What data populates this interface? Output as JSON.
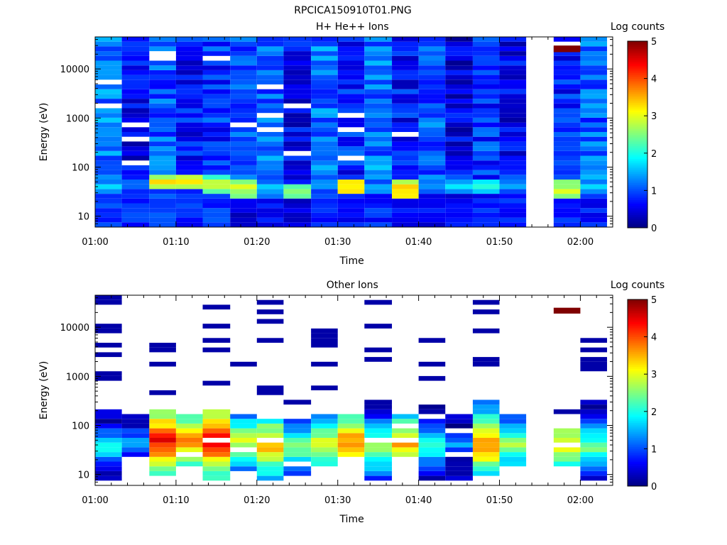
{
  "figure_title": "RPCICA150910T01.PNG",
  "colors": {
    "colormap": [
      "#00007f",
      "#0000ff",
      "#007fff",
      "#00ffff",
      "#7fff7f",
      "#ffff00",
      "#ff7f00",
      "#ff0000",
      "#7f0000"
    ],
    "axis": "#000000",
    "missing": "#ffffff"
  },
  "chart_data": [
    {
      "type": "heatmap",
      "title": "H+ He++ Ions",
      "xlabel": "Time",
      "ylabel": "Energy (eV)",
      "colorbar_label": "Log counts",
      "colorbar_ticks": [
        "0",
        "1",
        "2",
        "3",
        "4",
        "5"
      ],
      "colorbar_range": [
        0,
        5
      ],
      "x_ticks": [
        "01:00",
        "01:10",
        "01:20",
        "01:30",
        "01:40",
        "01:50",
        "02:00"
      ],
      "x_tick_minutes": [
        0,
        10,
        20,
        30,
        40,
        50,
        60
      ],
      "xlim_minutes": [
        0,
        64
      ],
      "y_scale": "log",
      "y_ticks": [
        "10",
        "100",
        "1000",
        "10000"
      ],
      "y_tick_values": [
        10,
        100,
        1000,
        10000
      ],
      "ylim": [
        6,
        45000
      ],
      "energy_bins_low_to_high": 40,
      "columns": [
        {
          "start_min": 0.0,
          "end_min": 3.3,
          "low_level": 0.9,
          "peak_level": 1.5,
          "peak_energy": 40,
          "high_level": 1.25
        },
        {
          "start_min": 3.3,
          "end_min": 6.7,
          "low_level": 0.8,
          "peak_level": 1.4,
          "peak_energy": 45,
          "high_level": 0.55
        },
        {
          "start_min": 6.7,
          "end_min": 10.0,
          "low_level": 0.9,
          "peak_level": 3.1,
          "peak_energy": 50,
          "high_level": 1.05
        },
        {
          "start_min": 10.0,
          "end_min": 13.3,
          "low_level": 0.8,
          "peak_level": 3.2,
          "peak_energy": 50,
          "high_level": 0.7
        },
        {
          "start_min": 13.3,
          "end_min": 16.7,
          "low_level": 0.9,
          "peak_level": 2.8,
          "peak_energy": 45,
          "high_level": 0.85
        },
        {
          "start_min": 16.7,
          "end_min": 20.0,
          "low_level": 0.5,
          "peak_level": 3.0,
          "peak_energy": 35,
          "high_level": 1.0
        },
        {
          "start_min": 20.0,
          "end_min": 23.3,
          "low_level": 0.7,
          "peak_level": 1.8,
          "peak_energy": 35,
          "high_level": 1.15
        },
        {
          "start_min": 23.3,
          "end_min": 26.7,
          "low_level": 0.5,
          "peak_level": 2.6,
          "peak_energy": 30,
          "high_level": 0.6
        },
        {
          "start_min": 26.7,
          "end_min": 30.0,
          "low_level": 0.8,
          "peak_level": 1.5,
          "peak_energy": 40,
          "high_level": 1.2
        },
        {
          "start_min": 30.0,
          "end_min": 33.3,
          "low_level": 0.7,
          "peak_level": 3.4,
          "peak_energy": 40,
          "high_level": 0.8
        },
        {
          "start_min": 33.3,
          "end_min": 36.7,
          "low_level": 0.8,
          "peak_level": 1.5,
          "peak_energy": 40,
          "high_level": 1.2
        },
        {
          "start_min": 36.7,
          "end_min": 40.0,
          "low_level": 0.6,
          "peak_level": 3.5,
          "peak_energy": 35,
          "high_level": 0.7
        },
        {
          "start_min": 40.0,
          "end_min": 43.3,
          "low_level": 0.6,
          "peak_level": 1.4,
          "peak_energy": 40,
          "high_level": 1.05
        },
        {
          "start_min": 43.3,
          "end_min": 46.7,
          "low_level": 0.6,
          "peak_level": 1.8,
          "peak_energy": 45,
          "high_level": 0.5
        },
        {
          "start_min": 46.7,
          "end_min": 50.0,
          "low_level": 0.7,
          "peak_level": 2.0,
          "peak_energy": 40,
          "high_level": 0.9
        },
        {
          "start_min": 50.0,
          "end_min": 53.3,
          "low_level": 0.7,
          "peak_level": 1.6,
          "peak_energy": 45,
          "high_level": 0.6
        },
        {
          "start_min": 53.3,
          "end_min": 56.7,
          "missing": true
        },
        {
          "start_min": 56.7,
          "end_min": 60.0,
          "low_level": 0.8,
          "peak_level": 3.0,
          "peak_energy": 35,
          "high_level": 0.75
        },
        {
          "start_min": 60.0,
          "end_min": 63.3,
          "low_level": 0.7,
          "peak_level": 1.5,
          "peak_energy": 40,
          "high_level": 1.1
        }
      ],
      "extra_cells": [
        {
          "start_min": 56.7,
          "end_min": 60.0,
          "e_low": 22000,
          "e_high": 30000,
          "level": 5.0
        }
      ]
    },
    {
      "type": "heatmap",
      "title": "Other Ions",
      "xlabel": "Time",
      "ylabel": "Energy (eV)",
      "colorbar_label": "Log counts",
      "colorbar_ticks": [
        "0",
        "1",
        "2",
        "3",
        "4",
        "5"
      ],
      "colorbar_range": [
        0,
        5
      ],
      "x_ticks": [
        "01:00",
        "01:10",
        "01:20",
        "01:30",
        "01:40",
        "01:50",
        "02:00"
      ],
      "x_tick_minutes": [
        0,
        10,
        20,
        30,
        40,
        50,
        60
      ],
      "xlim_minutes": [
        0,
        64
      ],
      "y_scale": "log",
      "y_ticks": [
        "10",
        "100",
        "1000",
        "10000"
      ],
      "y_tick_values": [
        10,
        100,
        1000,
        10000
      ],
      "ylim": [
        6,
        45000
      ],
      "energy_bins_low_to_high": 40,
      "columns": [
        {
          "start_min": 0.0,
          "end_min": 3.3,
          "bottom_energy": 7,
          "top_energy": 220,
          "peak_level": 2.0,
          "peak_energy": 35,
          "high_lines": [
            1000,
            1200,
            3000,
            4500,
            8000,
            11000,
            33000,
            40000
          ]
        },
        {
          "start_min": 3.3,
          "end_min": 6.7,
          "bottom_energy": 25,
          "top_energy": 170,
          "peak_level": 1.6,
          "peak_energy": 45,
          "high_lines": []
        },
        {
          "start_min": 6.7,
          "end_min": 10.0,
          "bottom_energy": 7,
          "top_energy": 220,
          "peak_level": 4.4,
          "peak_energy": 50,
          "high_lines": [
            480,
            1600,
            3700,
            4500
          ]
        },
        {
          "start_min": 10.0,
          "end_min": 13.3,
          "bottom_energy": 15,
          "top_energy": 170,
          "peak_level": 3.8,
          "peak_energy": 50,
          "high_lines": []
        },
        {
          "start_min": 13.3,
          "end_min": 16.7,
          "bottom_energy": 7,
          "top_energy": 220,
          "peak_level": 4.6,
          "peak_energy": 50,
          "high_lines": [
            650,
            800,
            3800,
            6000,
            10000,
            26000
          ]
        },
        {
          "start_min": 16.7,
          "end_min": 20.0,
          "bottom_energy": 13,
          "top_energy": 180,
          "peak_level": 3.0,
          "peak_energy": 45,
          "high_lines": [
            1800
          ]
        },
        {
          "start_min": 20.0,
          "end_min": 23.3,
          "bottom_energy": 7,
          "top_energy": 180,
          "peak_level": 3.6,
          "peak_energy": 40,
          "high_lines": [
            460,
            580,
            5000,
            5500,
            14000,
            20000,
            33000
          ]
        },
        {
          "start_min": 23.3,
          "end_min": 26.7,
          "bottom_energy": 10,
          "top_energy": 160,
          "peak_level": 2.6,
          "peak_energy": 35,
          "high_lines": [
            300
          ]
        },
        {
          "start_min": 26.7,
          "end_min": 30.0,
          "bottom_energy": 15,
          "top_energy": 210,
          "peak_level": 3.2,
          "peak_energy": 40,
          "high_lines": [
            520,
            1800,
            4600,
            5400,
            6500,
            8000
          ]
        },
        {
          "start_min": 30.0,
          "end_min": 33.3,
          "bottom_energy": 25,
          "top_energy": 190,
          "peak_level": 3.9,
          "peak_energy": 45,
          "high_lines": []
        },
        {
          "start_min": 33.3,
          "end_min": 36.7,
          "bottom_energy": 7,
          "top_energy": 220,
          "peak_level": 2.8,
          "peak_energy": 35,
          "high_lines": [
            240,
            330,
            2300,
            3100,
            3800,
            10500,
            29000
          ]
        },
        {
          "start_min": 36.7,
          "end_min": 40.0,
          "bottom_energy": 25,
          "top_energy": 160,
          "peak_level": 3.6,
          "peak_energy": 40,
          "high_lines": []
        },
        {
          "start_min": 40.0,
          "end_min": 43.3,
          "bottom_energy": 7,
          "top_energy": 270,
          "peak_level": 2.2,
          "peak_energy": 35,
          "high_lines": [
            880,
            1800,
            6000
          ]
        },
        {
          "start_min": 43.3,
          "end_min": 46.7,
          "bottom_energy": 7,
          "top_energy": 180,
          "peak_level": 1.4,
          "peak_energy": 40,
          "high_lines": []
        },
        {
          "start_min": 46.7,
          "end_min": 50.0,
          "bottom_energy": 10,
          "top_energy": 300,
          "peak_level": 3.8,
          "peak_energy": 40,
          "high_lines": [
            1900,
            2200,
            8500,
            22000,
            31000
          ]
        },
        {
          "start_min": 50.0,
          "end_min": 53.3,
          "bottom_energy": 15,
          "top_energy": 180,
          "peak_level": 2.8,
          "peak_energy": 40,
          "high_lines": []
        },
        {
          "start_min": 53.3,
          "end_min": 56.7,
          "missing": true
        },
        {
          "start_min": 56.7,
          "end_min": 60.0,
          "bottom_energy": 15,
          "top_energy": 100,
          "peak_level": 3.4,
          "peak_energy": 40,
          "high_lines": [
            180
          ]
        },
        {
          "start_min": 60.0,
          "end_min": 63.3,
          "bottom_energy": 7,
          "top_energy": 360,
          "peak_level": 2.6,
          "peak_energy": 35,
          "high_lines": [
            1400,
            1800,
            2200,
            3300,
            5300
          ]
        }
      ],
      "extra_cells": [
        {
          "start_min": 56.7,
          "end_min": 60.0,
          "e_low": 19000,
          "e_high": 25000,
          "level": 5.0
        }
      ]
    }
  ]
}
